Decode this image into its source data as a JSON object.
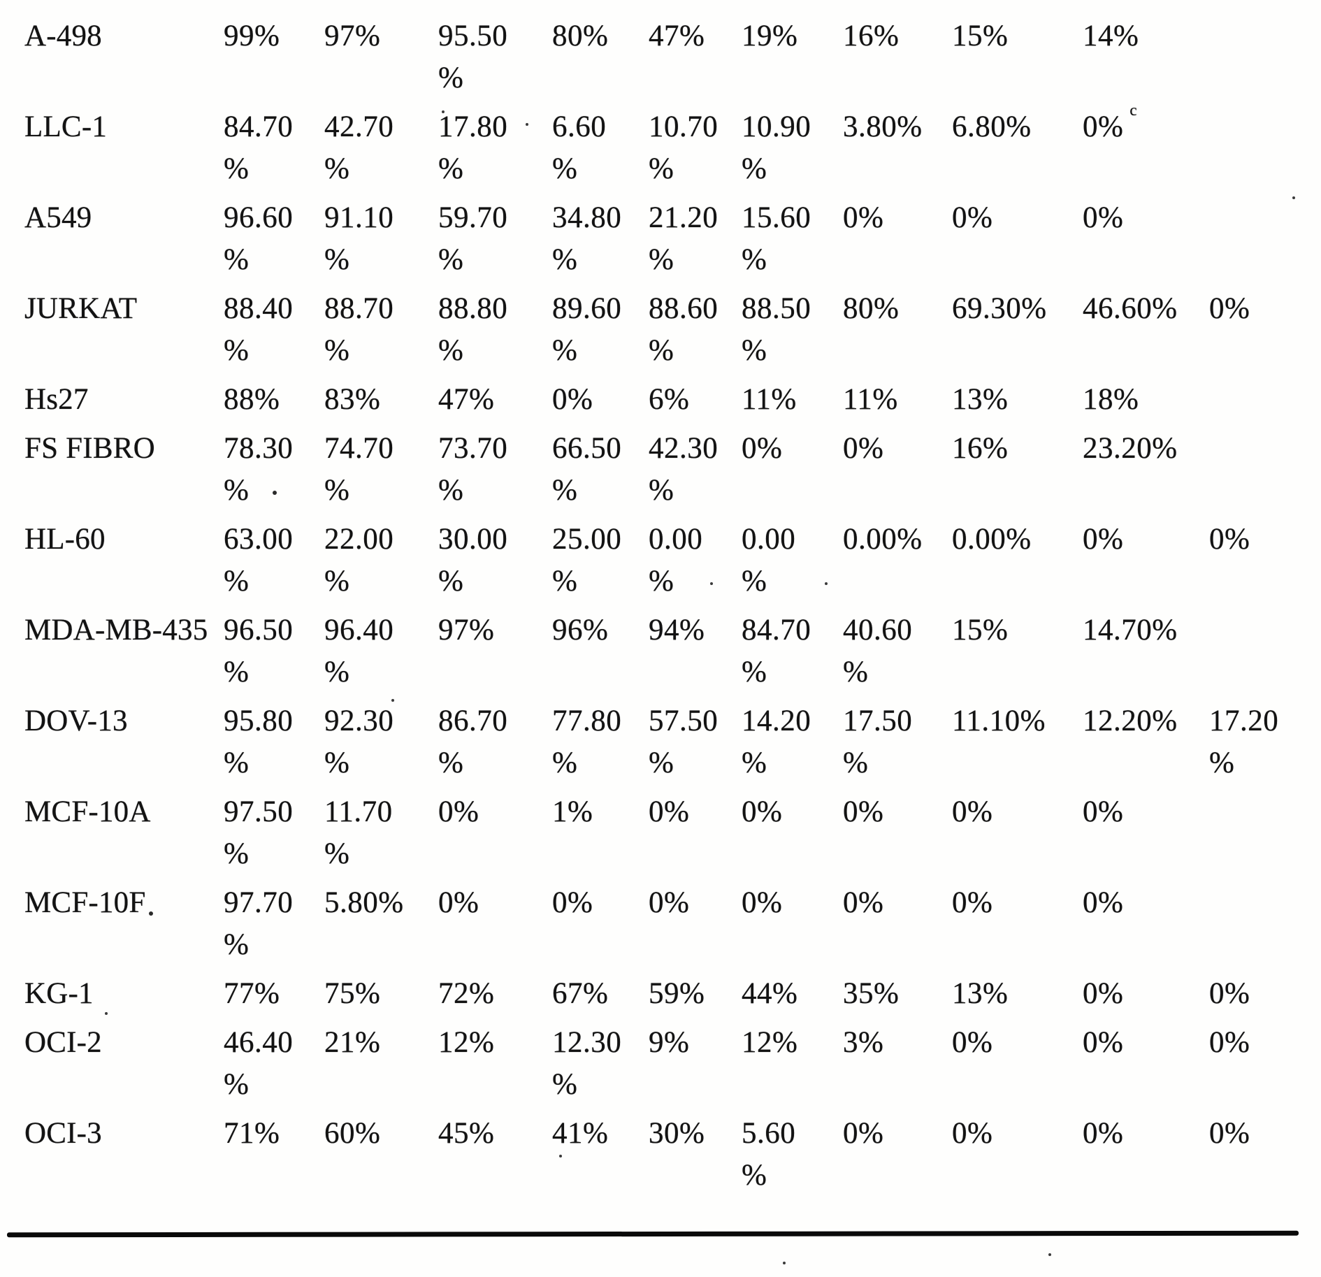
{
  "table": {
    "rows": [
      {
        "label": "A-498",
        "values": [
          "99%",
          "97%",
          "95.50\n%",
          "80%",
          "47%",
          "19%",
          "16%",
          "15%",
          "14%",
          ""
        ]
      },
      {
        "label": "LLC-1",
        "values": [
          "84.70\n%",
          "42.70\n%",
          "17.80\n%",
          "6.60\n%",
          "10.70\n%",
          "10.90\n%",
          "3.80%",
          "6.80%",
          {
            "text": "0%",
            "sup": "c"
          },
          ""
        ]
      },
      {
        "label": "A549",
        "values": [
          "96.60\n%",
          "91.10\n%",
          "59.70\n%",
          "34.80\n%",
          "21.20\n%",
          "15.60\n%",
          "0%",
          "0%",
          "0%",
          ""
        ]
      },
      {
        "label": "JURKAT",
        "values": [
          "88.40\n%",
          "88.70\n%",
          "88.80\n%",
          "89.60\n%",
          "88.60\n%",
          "88.50\n%",
          "80%",
          "69.30%",
          "46.60%",
          "0%"
        ]
      },
      {
        "label": "Hs27",
        "values": [
          "88%",
          "83%",
          "47%",
          "0%",
          "6%",
          "11%",
          "11%",
          "13%",
          "18%",
          ""
        ]
      },
      {
        "label": "FS FIBRO",
        "values": [
          "78.30\n%",
          "74.70\n%",
          "73.70\n%",
          "66.50\n%",
          "42.30\n%",
          "0%",
          "0%",
          "16%",
          "23.20%",
          ""
        ]
      },
      {
        "label": "HL-60",
        "values": [
          "63.00\n%",
          "22.00\n%",
          "30.00\n%",
          "25.00\n%",
          "0.00\n%",
          "0.00\n%",
          "0.00%",
          "0.00%",
          "0%",
          "0%"
        ]
      },
      {
        "label": "MDA-MB-435",
        "values": [
          "96.50\n%",
          "96.40\n%",
          "97%",
          "96%",
          "94%",
          "84.70\n%",
          "40.60\n%",
          "15%",
          "14.70%",
          ""
        ]
      },
      {
        "label": "DOV-13",
        "values": [
          "95.80\n%",
          "92.30\n%",
          "86.70\n%",
          "77.80\n%",
          "57.50\n%",
          "14.20\n%",
          "17.50\n%",
          "11.10%",
          "12.20%",
          "17.20\n%"
        ]
      },
      {
        "label": "MCF-10A",
        "values": [
          "97.50\n%",
          "11.70\n%",
          "0%",
          "1%",
          "0%",
          "0%",
          "0%",
          "0%",
          "0%",
          ""
        ]
      },
      {
        "label": "MCF-10F",
        "values": [
          "97.70\n%",
          "5.80%",
          "0%",
          "0%",
          "0%",
          "0%",
          "0%",
          "0%",
          "0%",
          ""
        ]
      },
      {
        "label": "KG-1",
        "values": [
          "77%",
          "75%",
          "72%",
          "67%",
          "59%",
          "44%",
          "35%",
          "13%",
          "0%",
          "0%"
        ]
      },
      {
        "label": "OCI-2",
        "values": [
          "46.40\n%",
          "21%",
          "12%",
          "12.30\n%",
          "9%",
          "12%",
          "3%",
          "0%",
          "0%",
          "0%"
        ]
      },
      {
        "label": "OCI-3",
        "values": [
          "71%",
          "60%",
          "45%",
          "41%",
          "30%",
          "5.60\n%",
          "0%",
          "0%",
          "0%",
          "0%"
        ]
      }
    ]
  }
}
